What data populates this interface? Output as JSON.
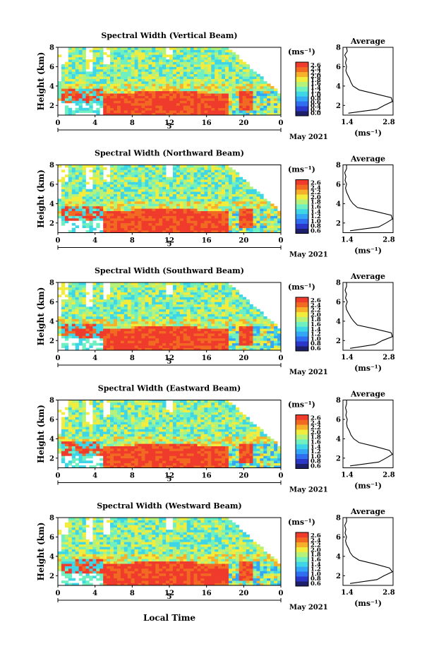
{
  "figure": {
    "xlabel": "Local Time",
    "date_label": "May 2021",
    "day_label": "5",
    "colorbar_unit": "(ms⁻¹)",
    "avg_title": "Average",
    "avg_unit": "(ms⁻¹)",
    "ylabel": "Height (km)",
    "color_scale": [
      "#1e1f6b",
      "#2a37c8",
      "#2f6ef0",
      "#33a6f5",
      "#3ed6e6",
      "#6ff0c0",
      "#b6f27a",
      "#f2ec3c",
      "#f7b02a",
      "#f26a22",
      "#ef3b2c"
    ]
  },
  "chart_data": [
    {
      "type": "heatmap",
      "title": "Spectral Width (Vertical Beam)",
      "xlabel": "Local Time",
      "ylabel": "Height (km)",
      "xlim": [
        0,
        24
      ],
      "xticks": [
        "0",
        "4",
        "8",
        "12",
        "16",
        "20",
        "0"
      ],
      "ylim": [
        1,
        8
      ],
      "yticks": [
        "2",
        "4",
        "6",
        "8"
      ],
      "colorbar": {
        "unit": "(ms⁻¹)",
        "ticks": [
          "2.6",
          "2.4",
          "2.2",
          "2.0",
          "1.8",
          "1.6",
          "1.4",
          "1.2",
          "1.0",
          "0.8",
          "0.6",
          "0.4",
          "0.2",
          "0.0"
        ],
        "range": [
          0,
          2.6
        ]
      },
      "average": {
        "title": "Average",
        "xlabel": "(ms⁻¹)",
        "xlim": [
          1.4,
          2.8
        ],
        "xticks": [
          "1.4",
          "2.8"
        ],
        "yticks": [
          "2",
          "4",
          "6",
          "8"
        ],
        "height": [
          1.2,
          1.6,
          2.0,
          2.4,
          2.8,
          3.2,
          3.6,
          4.0,
          4.4,
          4.8,
          5.2,
          5.6,
          6.0,
          6.4,
          6.8,
          7.2,
          7.6,
          8.0
        ],
        "value": [
          1.55,
          2.35,
          2.55,
          2.8,
          2.75,
          2.3,
          1.85,
          1.68,
          1.62,
          1.58,
          1.52,
          1.48,
          1.5,
          1.47,
          1.5,
          1.45,
          1.52,
          1.5
        ]
      }
    },
    {
      "type": "heatmap",
      "title": "Spectral Width (Northward Beam)",
      "xlabel": "Local Time",
      "ylabel": "Height (km)",
      "xlim": [
        0,
        24
      ],
      "xticks": [
        "0",
        "4",
        "8",
        "12",
        "16",
        "20",
        "0"
      ],
      "ylim": [
        1,
        8
      ],
      "yticks": [
        "2",
        "4",
        "6",
        "8"
      ],
      "colorbar": {
        "unit": "(ms⁻¹)",
        "ticks": [
          "2.6",
          "2.4",
          "2.2",
          "2.0",
          "1.8",
          "1.6",
          "1.4",
          "1.2",
          "1.0",
          "0.8",
          "0.6"
        ],
        "range": [
          0.6,
          2.6
        ]
      },
      "average": {
        "title": "Average",
        "xlabel": "(ms⁻¹)",
        "xlim": [
          1.4,
          2.8
        ],
        "xticks": [
          "1.4",
          "2.8"
        ],
        "yticks": [
          "2",
          "4",
          "6",
          "8"
        ],
        "height": [
          1.2,
          1.6,
          2.0,
          2.4,
          2.8,
          3.2,
          3.6,
          4.0,
          4.4,
          4.8,
          5.2,
          5.6,
          6.0,
          6.4,
          6.8,
          7.2,
          7.6,
          8.0
        ],
        "value": [
          1.6,
          2.4,
          2.6,
          2.8,
          2.75,
          2.3,
          1.8,
          1.68,
          1.6,
          1.55,
          1.5,
          1.47,
          1.5,
          1.46,
          1.48,
          1.45,
          1.5,
          1.5
        ]
      }
    },
    {
      "type": "heatmap",
      "title": "Spectral Width (Southward Beam)",
      "xlabel": "Local Time",
      "ylabel": "Height (km)",
      "xlim": [
        0,
        24
      ],
      "xticks": [
        "0",
        "4",
        "8",
        "12",
        "16",
        "20",
        "0"
      ],
      "ylim": [
        1,
        8
      ],
      "yticks": [
        "2",
        "4",
        "6",
        "8"
      ],
      "colorbar": {
        "unit": "(ms⁻¹)",
        "ticks": [
          "2.6",
          "2.4",
          "2.2",
          "2.0",
          "1.8",
          "1.6",
          "1.4",
          "1.2",
          "1.0",
          "0.8",
          "0.6"
        ],
        "range": [
          0.6,
          2.6
        ]
      },
      "average": {
        "title": "Average",
        "xlabel": "(ms⁻¹)",
        "xlim": [
          1.4,
          2.8
        ],
        "xticks": [
          "1.4",
          "2.8"
        ],
        "yticks": [
          "2",
          "4",
          "6",
          "8"
        ],
        "height": [
          1.2,
          1.6,
          2.0,
          2.4,
          2.8,
          3.2,
          3.6,
          4.0,
          4.4,
          4.8,
          5.2,
          5.6,
          6.0,
          6.4,
          6.8,
          7.2,
          7.6,
          8.0
        ],
        "value": [
          1.6,
          2.3,
          2.5,
          2.8,
          2.75,
          2.3,
          1.8,
          1.7,
          1.62,
          1.56,
          1.5,
          1.48,
          1.52,
          1.47,
          1.5,
          1.46,
          1.5,
          1.5
        ]
      }
    },
    {
      "type": "heatmap",
      "title": "Spectral Width (Eastward Beam)",
      "xlabel": "Local Time",
      "ylabel": "Height (km)",
      "xlim": [
        0,
        24
      ],
      "xticks": [
        "0",
        "4",
        "8",
        "12",
        "16",
        "20",
        "0"
      ],
      "ylim": [
        1,
        8
      ],
      "yticks": [
        "2",
        "4",
        "6",
        "8"
      ],
      "colorbar": {
        "unit": "(ms⁻¹)",
        "ticks": [
          "2.6",
          "2.4",
          "2.2",
          "2.0",
          "1.8",
          "1.6",
          "1.4",
          "1.2",
          "1.0",
          "0.8",
          "0.6"
        ],
        "range": [
          0.6,
          2.6
        ]
      },
      "average": {
        "title": "Average",
        "xlabel": "(ms⁻¹)",
        "xlim": [
          1.4,
          2.8
        ],
        "xticks": [
          "1.4",
          "2.8"
        ],
        "yticks": [
          "2",
          "4",
          "6",
          "8"
        ],
        "height": [
          1.2,
          1.6,
          2.0,
          2.4,
          2.8,
          3.2,
          3.6,
          4.0,
          4.4,
          4.8,
          5.2,
          5.6,
          6.0,
          6.4,
          6.8,
          7.2,
          7.6,
          8.0
        ],
        "value": [
          1.6,
          2.4,
          2.6,
          2.8,
          2.7,
          2.3,
          1.85,
          1.7,
          1.62,
          1.58,
          1.52,
          1.5,
          1.52,
          1.48,
          1.5,
          1.47,
          1.5,
          1.5
        ]
      }
    },
    {
      "type": "heatmap",
      "title": "Spectral Width (Westward Beam)",
      "xlabel": "Local Time",
      "ylabel": "Height (km)",
      "xlim": [
        0,
        24
      ],
      "xticks": [
        "0",
        "4",
        "8",
        "12",
        "16",
        "20",
        "0"
      ],
      "ylim": [
        1,
        8
      ],
      "yticks": [
        "2",
        "4",
        "6",
        "8"
      ],
      "colorbar": {
        "unit": "(ms⁻¹)",
        "ticks": [
          "2.6",
          "2.4",
          "2.2",
          "2.0",
          "1.8",
          "1.6",
          "1.4",
          "1.2",
          "1.0",
          "0.8",
          "0.6"
        ],
        "range": [
          0.6,
          2.6
        ]
      },
      "average": {
        "title": "Average",
        "xlabel": "(ms⁻¹)",
        "xlim": [
          1.4,
          2.8
        ],
        "xticks": [
          "1.4",
          "2.8"
        ],
        "yticks": [
          "2",
          "4",
          "6",
          "8"
        ],
        "height": [
          1.2,
          1.6,
          2.0,
          2.4,
          2.8,
          3.2,
          3.6,
          4.0,
          4.4,
          4.8,
          5.2,
          5.6,
          6.0,
          6.4,
          6.8,
          7.2,
          7.6,
          8.0
        ],
        "value": [
          1.6,
          2.35,
          2.55,
          2.8,
          2.7,
          2.3,
          1.85,
          1.68,
          1.6,
          1.56,
          1.5,
          1.47,
          1.5,
          1.46,
          1.48,
          1.45,
          1.5,
          1.5
        ]
      }
    }
  ]
}
